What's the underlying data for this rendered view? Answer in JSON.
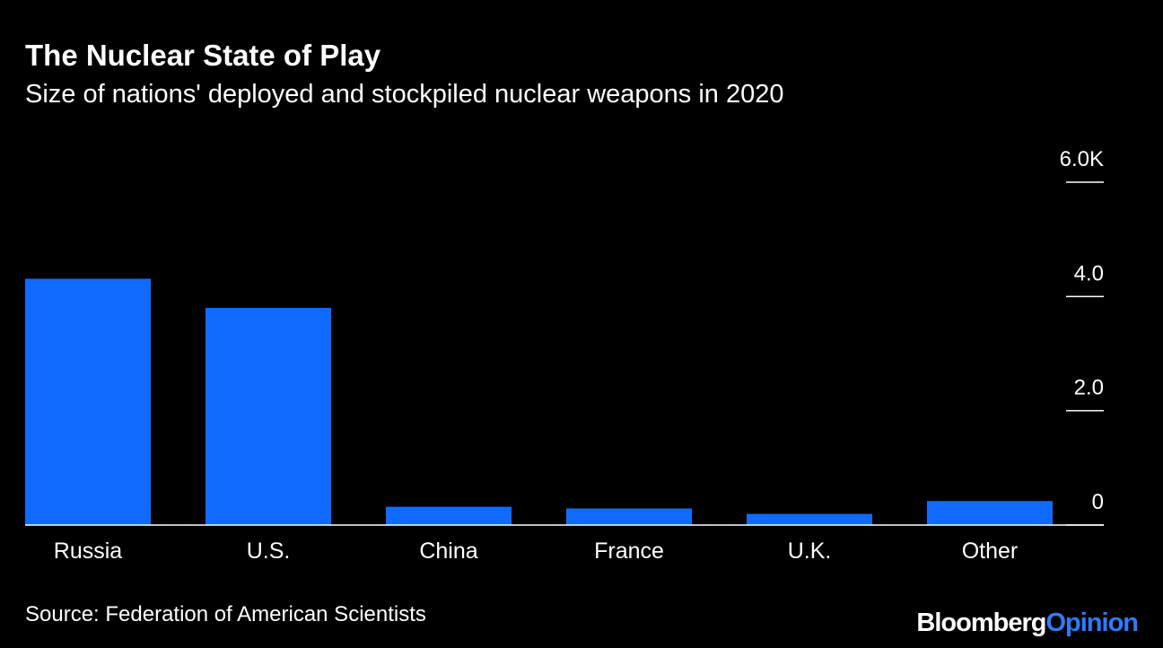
{
  "chart_data": {
    "type": "bar",
    "title": "The Nuclear State of Play",
    "subtitle": "Size of nations' deployed and stockpiled nuclear weapons in 2020",
    "categories": [
      "Russia",
      "U.S.",
      "China",
      "France",
      "U.K.",
      "Other"
    ],
    "values": [
      4310,
      3800,
      320,
      290,
      195,
      420
    ],
    "color": "#0f6bff",
    "ylim": [
      0,
      6000
    ],
    "yticks": [
      0,
      {
        "value": 2000,
        "label": "2.0"
      },
      {
        "value": 4000,
        "label": "4.0"
      },
      {
        "value": 6000,
        "label": "6.0K"
      }
    ],
    "source": "Source: Federation of American Scientists",
    "logo": [
      "Bloomberg",
      "Opinion"
    ]
  }
}
